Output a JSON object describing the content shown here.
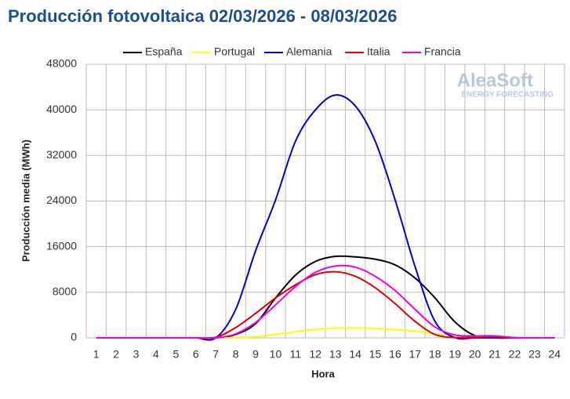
{
  "chart_data": {
    "type": "line",
    "title": "Producción fotovoltaica 02/03/2026 - 08/03/2026",
    "x_label": "Hora",
    "y_label": "Producción media (MWh)",
    "watermark": {
      "brand": "AleaSoft",
      "tagline": "ENERGY FORECASTING"
    },
    "categories": [
      "1",
      "2",
      "3",
      "4",
      "5",
      "6",
      "7",
      "8",
      "9",
      "10",
      "11",
      "12",
      "13",
      "14",
      "15",
      "16",
      "17",
      "18",
      "19",
      "20",
      "21",
      "22",
      "23",
      "24"
    ],
    "ylim": [
      0,
      48000
    ],
    "yticks": [
      0,
      8000,
      16000,
      24000,
      32000,
      40000,
      48000
    ],
    "grid": true,
    "legend": "top",
    "series": [
      {
        "name": "España",
        "color": "#000000",
        "values": [
          0,
          0,
          0,
          0,
          0,
          0,
          0,
          600,
          2500,
          7000,
          11000,
          13400,
          14300,
          14200,
          13800,
          12800,
          10500,
          7000,
          2800,
          400,
          0,
          0,
          0,
          0
        ]
      },
      {
        "name": "Portugal",
        "color": "#ffff00",
        "values": [
          0,
          0,
          0,
          0,
          0,
          0,
          0,
          0,
          200,
          600,
          1100,
          1500,
          1700,
          1750,
          1650,
          1450,
          1200,
          700,
          100,
          0,
          0,
          0,
          0,
          0
        ]
      },
      {
        "name": "Alemania",
        "color": "#0000cc",
        "values": [
          0,
          0,
          0,
          0,
          0,
          0,
          0,
          5000,
          15300,
          24200,
          34500,
          40000,
          42600,
          40700,
          34500,
          24200,
          12500,
          2900,
          50,
          0,
          0,
          0,
          0,
          0
        ]
      },
      {
        "name": "Italia",
        "color": "#e00000",
        "values": [
          0,
          0,
          0,
          0,
          0,
          0,
          100,
          1800,
          4300,
          7000,
          9300,
          11100,
          11600,
          10800,
          8800,
          6000,
          2900,
          600,
          50,
          100,
          200,
          0,
          0,
          0
        ]
      },
      {
        "name": "Francia",
        "color": "#ee00ee",
        "values": [
          0,
          0,
          0,
          0,
          0,
          0,
          0,
          700,
          2700,
          5800,
          9000,
          11500,
          12600,
          12400,
          10800,
          8300,
          5000,
          1900,
          500,
          350,
          350,
          50,
          0,
          0
        ]
      }
    ]
  }
}
